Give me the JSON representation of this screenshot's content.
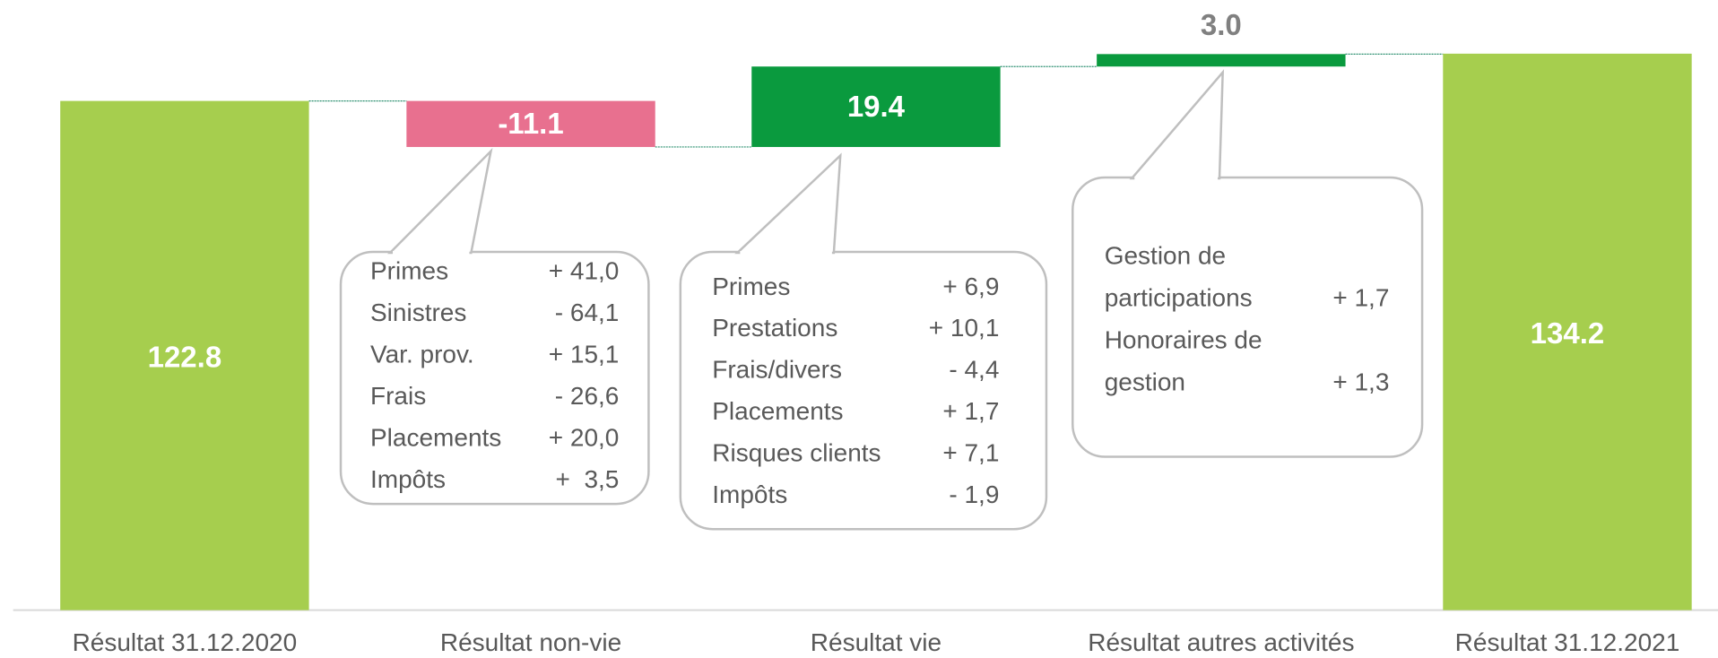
{
  "chart_data": {
    "type": "waterfall",
    "categories": [
      "Résultat 31.12.2020",
      "Résultat non-vie",
      "Résultat vie",
      "Résultat autres activités",
      "Résultat 31.12.2021"
    ],
    "values": [
      122.8,
      -11.1,
      19.4,
      3.0,
      134.2
    ],
    "value_labels": [
      "122.8",
      "-11.1",
      "19.4",
      "3.0",
      "134.2"
    ],
    "colors": [
      "#a6ce4e",
      "#e8708f",
      "#0a9a3e",
      "#0a9a3e",
      "#a6ce4e"
    ],
    "callouts": [
      {
        "rows": [
          {
            "label": [
              "Primes"
            ],
            "value": "+ 41,0"
          },
          {
            "label": [
              "Sinistres"
            ],
            "value": "- 64,1"
          },
          {
            "label": [
              "Var. prov."
            ],
            "value": "+ 15,1"
          },
          {
            "label": [
              "Frais"
            ],
            "value": "- 26,6"
          },
          {
            "label": [
              "Placements"
            ],
            "value": "+ 20,0"
          },
          {
            "label": [
              "Impôts"
            ],
            "value": "+  3,5"
          }
        ]
      },
      {
        "rows": [
          {
            "label": [
              "Primes"
            ],
            "value": "+ 6,9"
          },
          {
            "label": [
              "Prestations"
            ],
            "value": "+ 10,1"
          },
          {
            "label": [
              "Frais/divers"
            ],
            "value": "- 4,4"
          },
          {
            "label": [
              "Placements"
            ],
            "value": "+ 1,7"
          },
          {
            "label": [
              "Risques clients"
            ],
            "value": "+ 7,1"
          },
          {
            "label": [
              "Impôts"
            ],
            "value": "- 1,9"
          }
        ]
      },
      {
        "rows": [
          {
            "label": [
              "Gestion de",
              "participations"
            ],
            "value": "+ 1,7"
          },
          {
            "label": [
              "Honoraires de",
              "gestion"
            ],
            "value": "+ 1,3"
          }
        ]
      }
    ]
  }
}
